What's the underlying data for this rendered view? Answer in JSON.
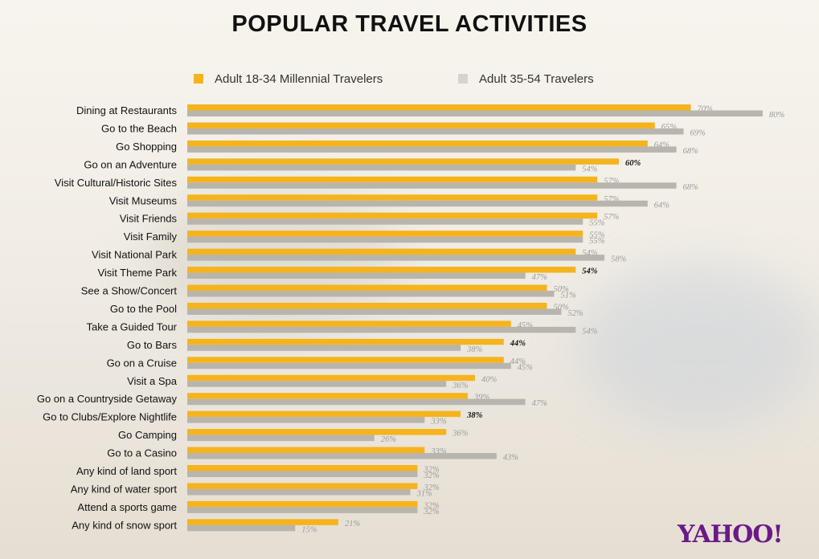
{
  "title": "POPULAR TRAVEL ACTIVITIES",
  "logo": "YAHOO!",
  "colors": {
    "series1": "#f5b41e",
    "series2": "#b8b4ae",
    "logo": "#6a1a86"
  },
  "chart_data": {
    "type": "bar",
    "orientation": "horizontal",
    "legend_position": "top",
    "grid": false,
    "xlim": [
      0,
      80
    ],
    "categories": [
      "Dining at Restaurants",
      "Go to the Beach",
      "Go Shopping",
      "Go on an Adventure",
      "Visit Cultural/Historic Sites",
      "Visit Museums",
      "Visit Friends",
      "Visit Family",
      "Visit National Park",
      "Visit Theme Park",
      "See a Show/Concert",
      "Go to the Pool",
      "Take a Guided Tour",
      "Go to Bars",
      "Go on a Cruise",
      "Visit a Spa",
      "Go on a Countryside Getaway",
      "Go to Clubs/Explore Nightlife",
      "Go Camping",
      "Go to a Casino",
      "Any kind of land sport",
      "Any kind of water sport",
      "Attend a sports game",
      "Any kind of snow sport"
    ],
    "series": [
      {
        "name": "Adult 18-34 Millennial Travelers",
        "values": [
          70,
          65,
          64,
          60,
          57,
          57,
          57,
          55,
          54,
          54,
          50,
          50,
          45,
          44,
          44,
          40,
          39,
          38,
          36,
          33,
          32,
          32,
          32,
          21
        ]
      },
      {
        "name": "Adult 35-54 Travelers",
        "values": [
          80,
          69,
          68,
          54,
          68,
          64,
          55,
          55,
          58,
          47,
          51,
          52,
          54,
          38,
          45,
          36,
          47,
          33,
          26,
          43,
          32,
          31,
          32,
          15
        ]
      }
    ],
    "highlighted_labels": [
      3,
      9,
      13,
      17
    ],
    "value_suffix": "%"
  }
}
